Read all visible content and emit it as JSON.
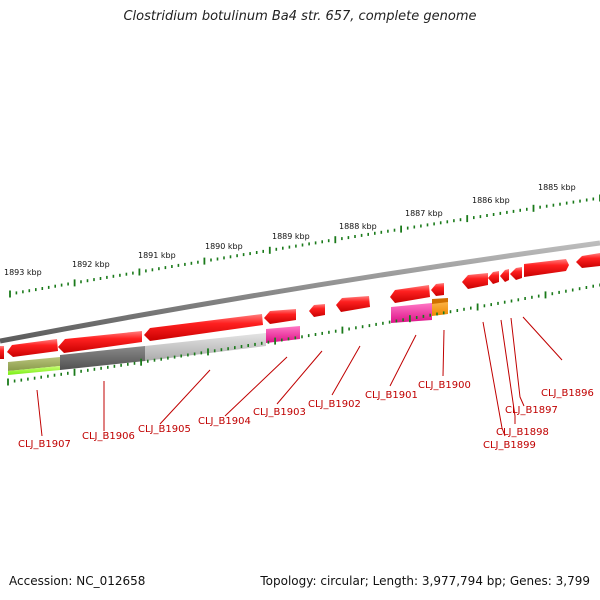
{
  "title": "Clostridium botulinum Ba4 str. 657, complete genome",
  "footer": {
    "accession": "Accession: NC_012658",
    "summary": "Topology: circular; Length: 3,977,794 bp; Genes: 3,799"
  },
  "ruler": {
    "labels": [
      "1893 kbp",
      "1892 kbp",
      "1891 kbp",
      "1890 kbp",
      "1889 kbp",
      "1888 kbp",
      "1887 kbp",
      "1886 kbp",
      "1885 kbp"
    ]
  },
  "genes": [
    "CLJ_B1907",
    "CLJ_B1906",
    "CLJ_B1905",
    "CLJ_B1904",
    "CLJ_B1903",
    "CLJ_B1902",
    "CLJ_B1901",
    "CLJ_B1900",
    "CLJ_B1896",
    "CLJ_B1897",
    "CLJ_B1898",
    "CLJ_B1899"
  ],
  "colors": {
    "cds": "#ee1111",
    "backbone": "#8a8a8a",
    "label": "#c00000",
    "tick": "#1a7a1a",
    "magenta": "#ee2299",
    "orange": "#ff9900",
    "dark_gray": "#666666",
    "light_gray": "#c8c8c8",
    "olive": "#99aa55",
    "lime": "#99ff33"
  }
}
